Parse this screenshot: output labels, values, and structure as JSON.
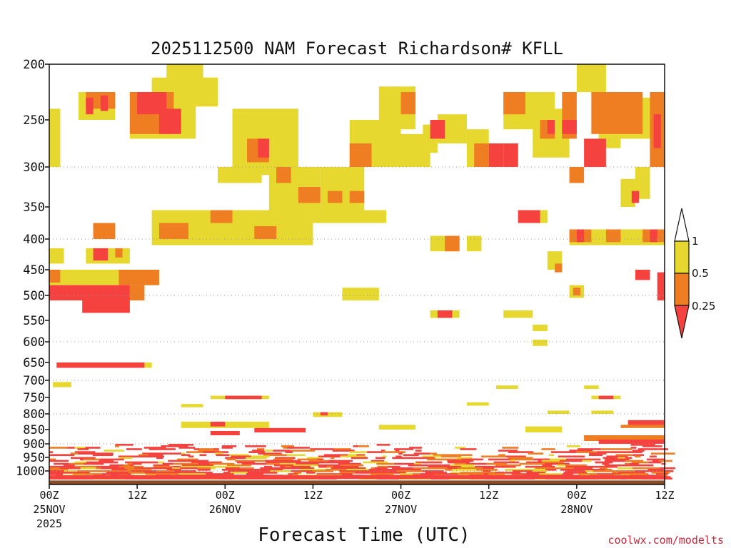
{
  "chart_data": {
    "type": "heatmap",
    "title": "2025112500 NAM Forecast Richardson# KFLL",
    "xlabel": "Forecast Time (UTC)",
    "ylabel": "",
    "credit": "coolwx.com/modelts",
    "x_range_hours": [
      0,
      84
    ],
    "x_ticks": [
      {
        "hour": 0,
        "label": "00Z",
        "sub": "25NOV",
        "sub2": "2025"
      },
      {
        "hour": 12,
        "label": "12Z",
        "sub": "",
        "sub2": ""
      },
      {
        "hour": 24,
        "label": "00Z",
        "sub": "26NOV",
        "sub2": ""
      },
      {
        "hour": 36,
        "label": "12Z",
        "sub": "",
        "sub2": ""
      },
      {
        "hour": 48,
        "label": "00Z",
        "sub": "27NOV",
        "sub2": ""
      },
      {
        "hour": 60,
        "label": "12Z",
        "sub": "",
        "sub2": ""
      },
      {
        "hour": 72,
        "label": "00Z",
        "sub": "28NOV",
        "sub2": ""
      },
      {
        "hour": 84,
        "label": "12Z",
        "sub": "",
        "sub2": ""
      }
    ],
    "y_ticks": [
      "200",
      "250",
      "300",
      "350",
      "400",
      "450",
      "500",
      "550",
      "600",
      "650",
      "700",
      "750",
      "800",
      "850",
      "900",
      "950",
      "1000"
    ],
    "y_gridlines": [
      "300",
      "400",
      "500",
      "600",
      "700",
      "800",
      "900",
      "1000"
    ],
    "legend": {
      "placement": "right",
      "levels": [
        {
          "label": "1",
          "color": "#ffffff"
        },
        {
          "label": "0.5",
          "color": "#e6d82e"
        },
        {
          "label": "0.25",
          "color": "#ef7d22"
        },
        {
          "label": "",
          "color": "#f5423f"
        }
      ]
    },
    "colors": {
      "low": "#f5423f",
      "mid": "#ef7d22",
      "high": "#e6d82e",
      "ground": "#8b4a22"
    },
    "cells": [
      {
        "h0": 16,
        "h1": 21,
        "p0": 200,
        "p1": 225,
        "c": "y"
      },
      {
        "h0": 14,
        "h1": 23,
        "p0": 212,
        "p1": 238,
        "c": "y"
      },
      {
        "h0": 4,
        "h1": 9,
        "p0": 225,
        "p1": 250,
        "c": "y"
      },
      {
        "h0": 5,
        "h1": 9,
        "p0": 225,
        "p1": 240,
        "c": "o"
      },
      {
        "h0": 5,
        "h1": 6,
        "p0": 230,
        "p1": 245,
        "c": "r"
      },
      {
        "h0": 7,
        "h1": 8,
        "p0": 228,
        "p1": 242,
        "c": "r"
      },
      {
        "h0": 11,
        "h1": 20,
        "p0": 225,
        "p1": 270,
        "c": "y"
      },
      {
        "h0": 11,
        "h1": 17,
        "p0": 225,
        "p1": 265,
        "c": "o"
      },
      {
        "h0": 12,
        "h1": 16,
        "p0": 225,
        "p1": 245,
        "c": "r"
      },
      {
        "h0": 15,
        "h1": 18,
        "p0": 240,
        "p1": 265,
        "c": "r"
      },
      {
        "h0": 0,
        "h1": 1.5,
        "p0": 240,
        "p1": 300,
        "c": "y"
      },
      {
        "h0": 25,
        "h1": 34,
        "p0": 240,
        "p1": 310,
        "c": "y"
      },
      {
        "h0": 27,
        "h1": 30,
        "p0": 270,
        "p1": 295,
        "c": "o"
      },
      {
        "h0": 28.5,
        "h1": 30,
        "p0": 270,
        "p1": 290,
        "c": "r"
      },
      {
        "h0": 23,
        "h1": 29,
        "p0": 300,
        "p1": 320,
        "c": "y"
      },
      {
        "h0": 30,
        "h1": 37,
        "p0": 300,
        "p1": 360,
        "c": "y"
      },
      {
        "h0": 31,
        "h1": 33,
        "p0": 300,
        "p1": 320,
        "c": "o"
      },
      {
        "h0": 34,
        "h1": 37,
        "p0": 325,
        "p1": 345,
        "c": "o"
      },
      {
        "h0": 37,
        "h1": 43,
        "p0": 300,
        "p1": 360,
        "c": "y"
      },
      {
        "h0": 38,
        "h1": 40,
        "p0": 330,
        "p1": 345,
        "c": "o"
      },
      {
        "h0": 41,
        "h1": 43,
        "p0": 330,
        "p1": 345,
        "c": "o"
      },
      {
        "h0": 14,
        "h1": 36,
        "p0": 355,
        "p1": 410,
        "c": "y"
      },
      {
        "h0": 15,
        "h1": 19,
        "p0": 375,
        "p1": 400,
        "c": "o"
      },
      {
        "h0": 22,
        "h1": 25,
        "p0": 355,
        "p1": 375,
        "c": "o"
      },
      {
        "h0": 28,
        "h1": 31,
        "p0": 380,
        "p1": 400,
        "c": "o"
      },
      {
        "h0": 36,
        "h1": 46,
        "p0": 355,
        "p1": 375,
        "c": "y"
      },
      {
        "h0": 6,
        "h1": 9,
        "p0": 375,
        "p1": 400,
        "c": "o"
      },
      {
        "h0": 0,
        "h1": 2,
        "p0": 415,
        "p1": 440,
        "c": "y"
      },
      {
        "h0": 5,
        "h1": 11,
        "p0": 415,
        "p1": 440,
        "c": "y"
      },
      {
        "h0": 6,
        "h1": 8,
        "p0": 415,
        "p1": 435,
        "c": "r"
      },
      {
        "h0": 9,
        "h1": 10,
        "p0": 415,
        "p1": 430,
        "c": "o"
      },
      {
        "h0": 0,
        "h1": 15,
        "p0": 450,
        "p1": 480,
        "c": "y"
      },
      {
        "h0": 0,
        "h1": 1.5,
        "p0": 450,
        "p1": 475,
        "c": "o"
      },
      {
        "h0": 9.5,
        "h1": 15,
        "p0": 450,
        "p1": 480,
        "c": "o"
      },
      {
        "h0": 0,
        "h1": 11,
        "p0": 480,
        "p1": 510,
        "c": "r"
      },
      {
        "h0": 11,
        "h1": 13,
        "p0": 480,
        "p1": 510,
        "c": "o"
      },
      {
        "h0": 4.5,
        "h1": 11,
        "p0": 505,
        "p1": 535,
        "c": "r"
      },
      {
        "h0": 40,
        "h1": 45,
        "p0": 485,
        "p1": 510,
        "c": "y"
      },
      {
        "h0": 1,
        "h1": 13,
        "p0": 650,
        "p1": 665,
        "c": "r"
      },
      {
        "h0": 13,
        "h1": 14,
        "p0": 650,
        "p1": 665,
        "c": "y"
      },
      {
        "h0": 0.5,
        "h1": 3,
        "p0": 705,
        "p1": 720,
        "c": "y"
      },
      {
        "h0": 22,
        "h1": 30,
        "p0": 745,
        "p1": 755,
        "c": "y"
      },
      {
        "h0": 24,
        "h1": 29,
        "p0": 745,
        "p1": 755,
        "c": "r"
      },
      {
        "h0": 18,
        "h1": 21,
        "p0": 770,
        "p1": 780,
        "c": "y"
      },
      {
        "h0": 36,
        "h1": 40,
        "p0": 795,
        "p1": 810,
        "c": "y"
      },
      {
        "h0": 37,
        "h1": 38,
        "p0": 795,
        "p1": 805,
        "c": "r"
      },
      {
        "h0": 22,
        "h1": 24,
        "p0": 825,
        "p1": 840,
        "c": "r"
      },
      {
        "h0": 28,
        "h1": 35,
        "p0": 845,
        "p1": 860,
        "c": "r"
      },
      {
        "h0": 22,
        "h1": 26,
        "p0": 855,
        "p1": 870,
        "c": "r"
      },
      {
        "h0": 18,
        "h1": 30,
        "p0": 825,
        "p1": 845,
        "c": "y"
      },
      {
        "h0": 45,
        "h1": 50,
        "p0": 835,
        "p1": 850,
        "c": "y"
      },
      {
        "h0": 52,
        "h1": 56,
        "p0": 395,
        "p1": 420,
        "c": "y"
      },
      {
        "h0": 54,
        "h1": 56,
        "p0": 395,
        "p1": 420,
        "c": "o"
      },
      {
        "h0": 57,
        "h1": 59,
        "p0": 395,
        "p1": 420,
        "c": "y"
      },
      {
        "h0": 52,
        "h1": 56,
        "p0": 530,
        "p1": 545,
        "c": "y"
      },
      {
        "h0": 53,
        "h1": 55,
        "p0": 530,
        "p1": 545,
        "c": "r"
      },
      {
        "h0": 45,
        "h1": 50,
        "p0": 220,
        "p1": 260,
        "c": "y"
      },
      {
        "h0": 48,
        "h1": 50,
        "p0": 225,
        "p1": 245,
        "c": "o"
      },
      {
        "h0": 41,
        "h1": 48,
        "p0": 250,
        "p1": 300,
        "c": "y"
      },
      {
        "h0": 41,
        "h1": 44,
        "p0": 275,
        "p1": 300,
        "c": "o"
      },
      {
        "h0": 47,
        "h1": 52,
        "p0": 265,
        "p1": 300,
        "c": "y"
      },
      {
        "h0": 51,
        "h1": 53,
        "p0": 255,
        "p1": 285,
        "c": "y"
      },
      {
        "h0": 52,
        "h1": 54,
        "p0": 250,
        "p1": 270,
        "c": "r"
      },
      {
        "h0": 53,
        "h1": 57,
        "p0": 245,
        "p1": 275,
        "c": "y"
      },
      {
        "h0": 57,
        "h1": 60,
        "p0": 260,
        "p1": 300,
        "c": "y"
      },
      {
        "h0": 58,
        "h1": 60,
        "p0": 275,
        "p1": 300,
        "c": "o"
      },
      {
        "h0": 60,
        "h1": 62,
        "p0": 275,
        "p1": 300,
        "c": "r"
      },
      {
        "h0": 62,
        "h1": 64,
        "p0": 275,
        "p1": 300,
        "c": "r"
      },
      {
        "h0": 62,
        "h1": 69,
        "p0": 225,
        "p1": 260,
        "c": "y"
      },
      {
        "h0": 62,
        "h1": 65,
        "p0": 225,
        "p1": 245,
        "c": "o"
      },
      {
        "h0": 66,
        "h1": 71,
        "p0": 240,
        "p1": 290,
        "c": "y"
      },
      {
        "h0": 67,
        "h1": 69,
        "p0": 250,
        "p1": 270,
        "c": "o"
      },
      {
        "h0": 68,
        "h1": 69,
        "p0": 250,
        "p1": 265,
        "c": "r"
      },
      {
        "h0": 70,
        "h1": 72,
        "p0": 225,
        "p1": 270,
        "c": "o"
      },
      {
        "h0": 70,
        "h1": 72,
        "p0": 250,
        "p1": 265,
        "c": "r"
      },
      {
        "h0": 72,
        "h1": 76,
        "p0": 200,
        "p1": 225,
        "c": "y"
      },
      {
        "h0": 74,
        "h1": 81,
        "p0": 225,
        "p1": 265,
        "c": "o"
      },
      {
        "h0": 75,
        "h1": 78,
        "p0": 245,
        "p1": 280,
        "c": "y"
      },
      {
        "h0": 73,
        "h1": 76,
        "p0": 270,
        "p1": 300,
        "c": "r"
      },
      {
        "h0": 78,
        "h1": 82,
        "p0": 230,
        "p1": 270,
        "c": "y"
      },
      {
        "h0": 82,
        "h1": 84,
        "p0": 225,
        "p1": 300,
        "c": "o"
      },
      {
        "h0": 82.5,
        "h1": 83.5,
        "p0": 245,
        "p1": 280,
        "c": "r"
      },
      {
        "h0": 71,
        "h1": 73,
        "p0": 300,
        "p1": 320,
        "c": "o"
      },
      {
        "h0": 78,
        "h1": 80,
        "p0": 315,
        "p1": 350,
        "c": "y"
      },
      {
        "h0": 80,
        "h1": 82,
        "p0": 300,
        "p1": 340,
        "c": "y"
      },
      {
        "h0": 79.5,
        "h1": 80.5,
        "p0": 330,
        "p1": 345,
        "c": "r"
      },
      {
        "h0": 64,
        "h1": 68,
        "p0": 355,
        "p1": 375,
        "c": "y"
      },
      {
        "h0": 64,
        "h1": 67,
        "p0": 355,
        "p1": 375,
        "c": "r"
      },
      {
        "h0": 71,
        "h1": 84,
        "p0": 385,
        "p1": 410,
        "c": "y"
      },
      {
        "h0": 71,
        "h1": 74,
        "p0": 385,
        "p1": 405,
        "c": "o"
      },
      {
        "h0": 72,
        "h1": 73,
        "p0": 385,
        "p1": 405,
        "c": "r"
      },
      {
        "h0": 76,
        "h1": 78,
        "p0": 385,
        "p1": 405,
        "c": "o"
      },
      {
        "h0": 81,
        "h1": 84,
        "p0": 385,
        "p1": 405,
        "c": "o"
      },
      {
        "h0": 82,
        "h1": 83,
        "p0": 385,
        "p1": 405,
        "c": "r"
      },
      {
        "h0": 68,
        "h1": 70,
        "p0": 420,
        "p1": 450,
        "c": "y"
      },
      {
        "h0": 69,
        "h1": 70,
        "p0": 440,
        "p1": 455,
        "c": "o"
      },
      {
        "h0": 80,
        "h1": 82,
        "p0": 450,
        "p1": 470,
        "c": "r"
      },
      {
        "h0": 83,
        "h1": 84,
        "p0": 455,
        "p1": 510,
        "c": "r"
      },
      {
        "h0": 71,
        "h1": 73,
        "p0": 480,
        "p1": 505,
        "c": "y"
      },
      {
        "h0": 71.5,
        "h1": 72.5,
        "p0": 485,
        "p1": 500,
        "c": "o"
      },
      {
        "h0": 62,
        "h1": 66,
        "p0": 530,
        "p1": 545,
        "c": "y"
      },
      {
        "h0": 66,
        "h1": 68,
        "p0": 560,
        "p1": 575,
        "c": "y"
      },
      {
        "h0": 66,
        "h1": 68,
        "p0": 595,
        "p1": 610,
        "c": "y"
      },
      {
        "h0": 61,
        "h1": 64,
        "p0": 715,
        "p1": 725,
        "c": "y"
      },
      {
        "h0": 73,
        "h1": 75,
        "p0": 715,
        "p1": 725,
        "c": "y"
      },
      {
        "h0": 74,
        "h1": 78,
        "p0": 745,
        "p1": 755,
        "c": "y"
      },
      {
        "h0": 75,
        "h1": 77,
        "p0": 745,
        "p1": 755,
        "c": "r"
      },
      {
        "h0": 57,
        "h1": 60,
        "p0": 765,
        "p1": 775,
        "c": "y"
      },
      {
        "h0": 68,
        "h1": 71,
        "p0": 790,
        "p1": 800,
        "c": "y"
      },
      {
        "h0": 74,
        "h1": 77,
        "p0": 790,
        "p1": 800,
        "c": "y"
      },
      {
        "h0": 79,
        "h1": 84,
        "p0": 820,
        "p1": 835,
        "c": "r"
      },
      {
        "h0": 78,
        "h1": 84,
        "p0": 835,
        "p1": 845,
        "c": "o"
      },
      {
        "h0": 65,
        "h1": 70,
        "p0": 840,
        "p1": 860,
        "c": "y"
      },
      {
        "h0": 73,
        "h1": 84,
        "p0": 870,
        "p1": 890,
        "c": "o"
      },
      {
        "h0": 75,
        "h1": 84,
        "p0": 885,
        "p1": 900,
        "c": "r"
      }
    ],
    "lowband": {
      "p0": 900,
      "p1": 1025,
      "ground_p": 1025
    }
  }
}
